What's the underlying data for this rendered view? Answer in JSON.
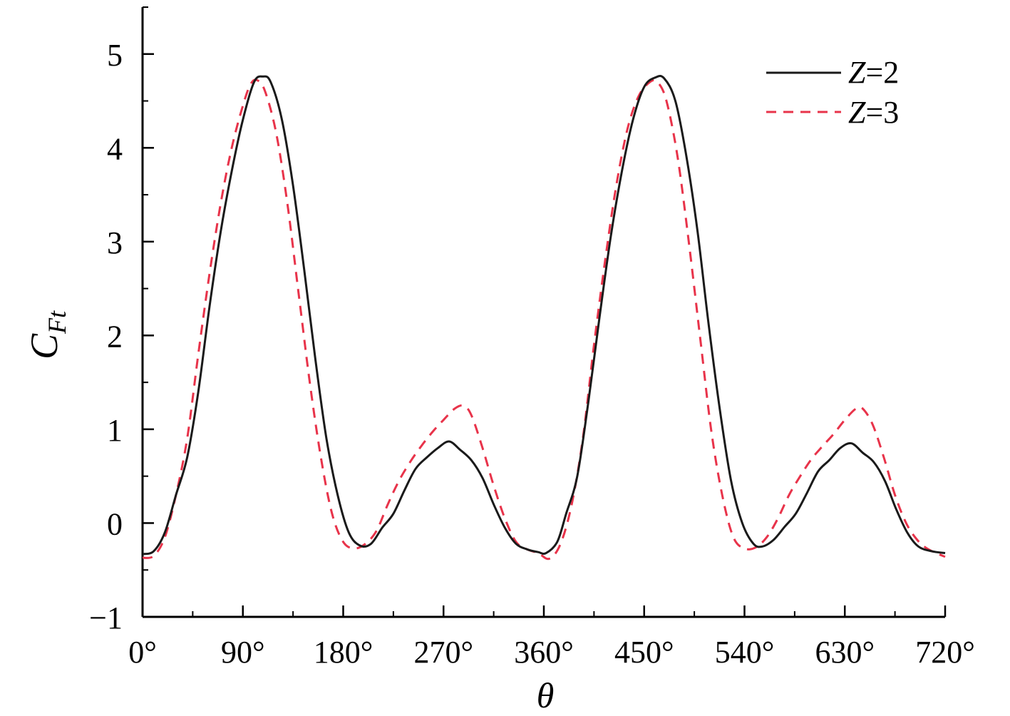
{
  "chart_data": {
    "type": "line",
    "title": "",
    "xlabel": "θ",
    "ylabel": {
      "main": "C",
      "sub": "Ft"
    },
    "xlim": [
      0,
      720
    ],
    "ylim": [
      -1,
      5.5
    ],
    "x_ticks": [
      0,
      90,
      180,
      270,
      360,
      450,
      540,
      630,
      720
    ],
    "x_tick_labels": [
      "0°",
      "90°",
      "180°",
      "270°",
      "360°",
      "450°",
      "540°",
      "630°",
      "720°"
    ],
    "x_minor_step": 45,
    "y_ticks": [
      -1,
      0,
      1,
      2,
      3,
      4,
      5
    ],
    "y_tick_labels": [
      "−1",
      "0",
      "1",
      "2",
      "3",
      "4",
      "5"
    ],
    "y_minor_step": 0.5,
    "grid": false,
    "legend_position": "top-right",
    "series": [
      {
        "name": {
          "var": "Z",
          "eq": "=2"
        },
        "color": "#1a1a1a",
        "dash": "solid",
        "points": [
          [
            0,
            -0.33
          ],
          [
            10,
            -0.3
          ],
          [
            20,
            -0.1
          ],
          [
            30,
            0.3
          ],
          [
            40,
            0.7
          ],
          [
            50,
            1.4
          ],
          [
            60,
            2.3
          ],
          [
            70,
            3.1
          ],
          [
            80,
            3.75
          ],
          [
            90,
            4.3
          ],
          [
            100,
            4.7
          ],
          [
            108,
            4.76
          ],
          [
            115,
            4.7
          ],
          [
            125,
            4.3
          ],
          [
            135,
            3.6
          ],
          [
            145,
            2.7
          ],
          [
            155,
            1.75
          ],
          [
            165,
            0.9
          ],
          [
            175,
            0.3
          ],
          [
            185,
            -0.1
          ],
          [
            195,
            -0.24
          ],
          [
            205,
            -0.22
          ],
          [
            215,
            -0.05
          ],
          [
            225,
            0.1
          ],
          [
            235,
            0.35
          ],
          [
            245,
            0.58
          ],
          [
            255,
            0.7
          ],
          [
            265,
            0.8
          ],
          [
            275,
            0.87
          ],
          [
            285,
            0.78
          ],
          [
            295,
            0.67
          ],
          [
            305,
            0.48
          ],
          [
            315,
            0.2
          ],
          [
            325,
            -0.05
          ],
          [
            335,
            -0.22
          ],
          [
            345,
            -0.28
          ],
          [
            355,
            -0.31
          ],
          [
            362,
            -0.32
          ],
          [
            372,
            -0.2
          ],
          [
            380,
            0.1
          ],
          [
            390,
            0.5
          ],
          [
            400,
            1.3
          ],
          [
            410,
            2.2
          ],
          [
            420,
            3.05
          ],
          [
            430,
            3.75
          ],
          [
            440,
            4.3
          ],
          [
            450,
            4.65
          ],
          [
            460,
            4.75
          ],
          [
            468,
            4.74
          ],
          [
            478,
            4.5
          ],
          [
            488,
            3.9
          ],
          [
            498,
            3.1
          ],
          [
            508,
            2.1
          ],
          [
            518,
            1.2
          ],
          [
            528,
            0.45
          ],
          [
            538,
            0.0
          ],
          [
            548,
            -0.22
          ],
          [
            556,
            -0.25
          ],
          [
            566,
            -0.18
          ],
          [
            576,
            -0.04
          ],
          [
            586,
            0.1
          ],
          [
            596,
            0.32
          ],
          [
            606,
            0.55
          ],
          [
            616,
            0.67
          ],
          [
            626,
            0.8
          ],
          [
            636,
            0.85
          ],
          [
            646,
            0.75
          ],
          [
            656,
            0.65
          ],
          [
            666,
            0.45
          ],
          [
            676,
            0.15
          ],
          [
            686,
            -0.1
          ],
          [
            696,
            -0.25
          ],
          [
            708,
            -0.3
          ],
          [
            720,
            -0.32
          ]
        ]
      },
      {
        "name": {
          "var": "Z",
          "eq": "=3"
        },
        "color": "#e8334a",
        "dash": "dashed",
        "points": [
          [
            0,
            -0.37
          ],
          [
            10,
            -0.35
          ],
          [
            20,
            -0.15
          ],
          [
            30,
            0.3
          ],
          [
            40,
            0.9
          ],
          [
            50,
            1.8
          ],
          [
            60,
            2.65
          ],
          [
            70,
            3.4
          ],
          [
            80,
            4.0
          ],
          [
            90,
            4.45
          ],
          [
            97,
            4.68
          ],
          [
            103,
            4.72
          ],
          [
            110,
            4.6
          ],
          [
            120,
            4.15
          ],
          [
            130,
            3.4
          ],
          [
            140,
            2.45
          ],
          [
            150,
            1.5
          ],
          [
            160,
            0.7
          ],
          [
            170,
            0.1
          ],
          [
            180,
            -0.2
          ],
          [
            190,
            -0.27
          ],
          [
            200,
            -0.22
          ],
          [
            210,
            -0.08
          ],
          [
            220,
            0.2
          ],
          [
            230,
            0.45
          ],
          [
            240,
            0.65
          ],
          [
            250,
            0.82
          ],
          [
            260,
            0.97
          ],
          [
            270,
            1.1
          ],
          [
            280,
            1.22
          ],
          [
            288,
            1.25
          ],
          [
            295,
            1.15
          ],
          [
            305,
            0.8
          ],
          [
            315,
            0.4
          ],
          [
            325,
            0.05
          ],
          [
            335,
            -0.2
          ],
          [
            345,
            -0.28
          ],
          [
            355,
            -0.32
          ],
          [
            365,
            -0.38
          ],
          [
            375,
            -0.22
          ],
          [
            385,
            0.2
          ],
          [
            395,
            0.9
          ],
          [
            405,
            1.9
          ],
          [
            415,
            2.8
          ],
          [
            425,
            3.6
          ],
          [
            435,
            4.2
          ],
          [
            445,
            4.55
          ],
          [
            455,
            4.7
          ],
          [
            462,
            4.7
          ],
          [
            470,
            4.5
          ],
          [
            480,
            3.9
          ],
          [
            490,
            3.0
          ],
          [
            500,
            2.0
          ],
          [
            510,
            1.0
          ],
          [
            520,
            0.3
          ],
          [
            530,
            -0.15
          ],
          [
            540,
            -0.27
          ],
          [
            550,
            -0.26
          ],
          [
            560,
            -0.15
          ],
          [
            570,
            0.05
          ],
          [
            580,
            0.3
          ],
          [
            590,
            0.5
          ],
          [
            600,
            0.68
          ],
          [
            610,
            0.82
          ],
          [
            620,
            0.95
          ],
          [
            630,
            1.1
          ],
          [
            640,
            1.22
          ],
          [
            646,
            1.22
          ],
          [
            655,
            1.05
          ],
          [
            665,
            0.7
          ],
          [
            675,
            0.3
          ],
          [
            685,
            0.0
          ],
          [
            695,
            -0.18
          ],
          [
            705,
            -0.28
          ],
          [
            720,
            -0.36
          ]
        ]
      }
    ]
  }
}
